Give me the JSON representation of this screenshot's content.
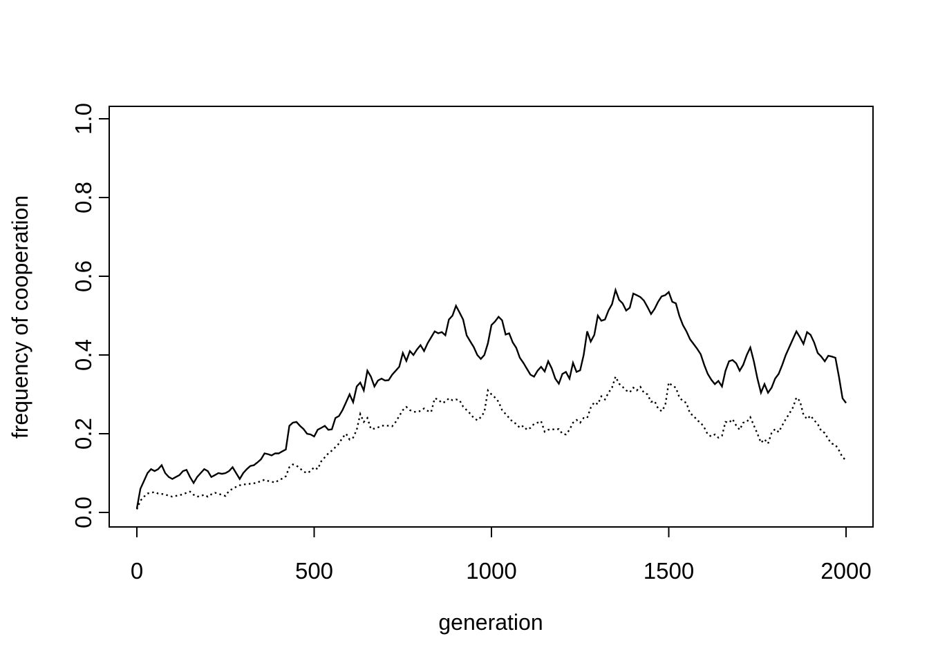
{
  "figure": {
    "background_color": "#ffffff",
    "foreground_color": "#000000"
  },
  "chart_data": {
    "type": "line",
    "title": "",
    "xlabel": "generation",
    "ylabel": "frequency of cooperation",
    "xlim": [
      0,
      2000
    ],
    "ylim": [
      0.0,
      1.0
    ],
    "x_ticks": [
      0,
      500,
      1000,
      1500,
      2000
    ],
    "y_tick_labels": [
      "0.0",
      "0.2",
      "0.4",
      "0.6",
      "0.8",
      "1.0"
    ],
    "grid": false,
    "legend_position": "none",
    "x_start": 0,
    "x_step": 10,
    "series": [
      {
        "name": "cooperation-frequency-solid",
        "style": "solid",
        "color": "#000000",
        "values": [
          0.01,
          0.06,
          0.08,
          0.1,
          0.11,
          0.105,
          0.11,
          0.12,
          0.1,
          0.09,
          0.085,
          0.09,
          0.095,
          0.105,
          0.108,
          0.09,
          0.075,
          0.09,
          0.1,
          0.11,
          0.105,
          0.09,
          0.095,
          0.1,
          0.098,
          0.1,
          0.105,
          0.115,
          0.1,
          0.085,
          0.1,
          0.11,
          0.118,
          0.12,
          0.127,
          0.135,
          0.15,
          0.148,
          0.145,
          0.15,
          0.15,
          0.155,
          0.16,
          0.22,
          0.228,
          0.23,
          0.22,
          0.212,
          0.2,
          0.198,
          0.193,
          0.21,
          0.215,
          0.22,
          0.21,
          0.211,
          0.24,
          0.245,
          0.26,
          0.28,
          0.3,
          0.28,
          0.32,
          0.33,
          0.31,
          0.36,
          0.345,
          0.32,
          0.335,
          0.34,
          0.335,
          0.336,
          0.35,
          0.36,
          0.37,
          0.405,
          0.385,
          0.41,
          0.4,
          0.414,
          0.425,
          0.41,
          0.43,
          0.445,
          0.46,
          0.455,
          0.458,
          0.45,
          0.49,
          0.5,
          0.525,
          0.508,
          0.49,
          0.45,
          0.435,
          0.42,
          0.4,
          0.39,
          0.4,
          0.43,
          0.476,
          0.485,
          0.497,
          0.488,
          0.452,
          0.455,
          0.432,
          0.418,
          0.393,
          0.38,
          0.365,
          0.35,
          0.345,
          0.36,
          0.37,
          0.358,
          0.384,
          0.366,
          0.34,
          0.327,
          0.352,
          0.357,
          0.34,
          0.38,
          0.357,
          0.361,
          0.4,
          0.46,
          0.434,
          0.451,
          0.5,
          0.487,
          0.49,
          0.513,
          0.529,
          0.565,
          0.54,
          0.531,
          0.513,
          0.52,
          0.556,
          0.552,
          0.547,
          0.538,
          0.522,
          0.504,
          0.517,
          0.535,
          0.549,
          0.552,
          0.56,
          0.535,
          0.531,
          0.499,
          0.476,
          0.46,
          0.44,
          0.428,
          0.416,
          0.402,
          0.375,
          0.352,
          0.337,
          0.326,
          0.334,
          0.32,
          0.36,
          0.384,
          0.387,
          0.379,
          0.36,
          0.375,
          0.4,
          0.419,
          0.384,
          0.34,
          0.304,
          0.326,
          0.304,
          0.317,
          0.34,
          0.352,
          0.375,
          0.4,
          0.42,
          0.44,
          0.46,
          0.445,
          0.428,
          0.458,
          0.451,
          0.432,
          0.405,
          0.396,
          0.384,
          0.398,
          0.396,
          0.393,
          0.345,
          0.29,
          0.278
        ]
      },
      {
        "name": "cooperation-frequency-dotted",
        "style": "dotted",
        "color": "#000000",
        "values": [
          0.008,
          0.03,
          0.04,
          0.048,
          0.05,
          0.052,
          0.048,
          0.047,
          0.046,
          0.042,
          0.04,
          0.042,
          0.044,
          0.046,
          0.05,
          0.053,
          0.045,
          0.04,
          0.042,
          0.045,
          0.04,
          0.046,
          0.05,
          0.048,
          0.044,
          0.042,
          0.055,
          0.06,
          0.065,
          0.069,
          0.071,
          0.072,
          0.073,
          0.074,
          0.076,
          0.08,
          0.083,
          0.08,
          0.078,
          0.076,
          0.082,
          0.086,
          0.092,
          0.115,
          0.122,
          0.119,
          0.112,
          0.104,
          0.1,
          0.105,
          0.115,
          0.11,
          0.13,
          0.14,
          0.15,
          0.157,
          0.166,
          0.175,
          0.19,
          0.2,
          0.185,
          0.19,
          0.21,
          0.25,
          0.23,
          0.24,
          0.212,
          0.213,
          0.216,
          0.22,
          0.221,
          0.22,
          0.219,
          0.23,
          0.245,
          0.26,
          0.268,
          0.26,
          0.256,
          0.255,
          0.258,
          0.264,
          0.258,
          0.255,
          0.29,
          0.287,
          0.278,
          0.281,
          0.29,
          0.285,
          0.287,
          0.285,
          0.269,
          0.26,
          0.251,
          0.24,
          0.234,
          0.242,
          0.255,
          0.31,
          0.3,
          0.292,
          0.281,
          0.26,
          0.25,
          0.24,
          0.23,
          0.225,
          0.215,
          0.22,
          0.21,
          0.215,
          0.225,
          0.228,
          0.232,
          0.205,
          0.21,
          0.212,
          0.21,
          0.212,
          0.2,
          0.198,
          0.21,
          0.228,
          0.235,
          0.228,
          0.24,
          0.24,
          0.266,
          0.28,
          0.275,
          0.295,
          0.287,
          0.304,
          0.317,
          0.345,
          0.327,
          0.319,
          0.31,
          0.305,
          0.317,
          0.31,
          0.319,
          0.304,
          0.3,
          0.281,
          0.283,
          0.264,
          0.257,
          0.272,
          0.33,
          0.322,
          0.317,
          0.292,
          0.283,
          0.278,
          0.251,
          0.246,
          0.234,
          0.228,
          0.216,
          0.198,
          0.193,
          0.198,
          0.19,
          0.195,
          0.23,
          0.228,
          0.237,
          0.221,
          0.21,
          0.228,
          0.23,
          0.242,
          0.221,
          0.2,
          0.177,
          0.186,
          0.175,
          0.202,
          0.212,
          0.204,
          0.221,
          0.237,
          0.251,
          0.266,
          0.292,
          0.283,
          0.248,
          0.237,
          0.246,
          0.234,
          0.225,
          0.207,
          0.202,
          0.186,
          0.175,
          0.172,
          0.158,
          0.14,
          0.133
        ]
      }
    ]
  }
}
